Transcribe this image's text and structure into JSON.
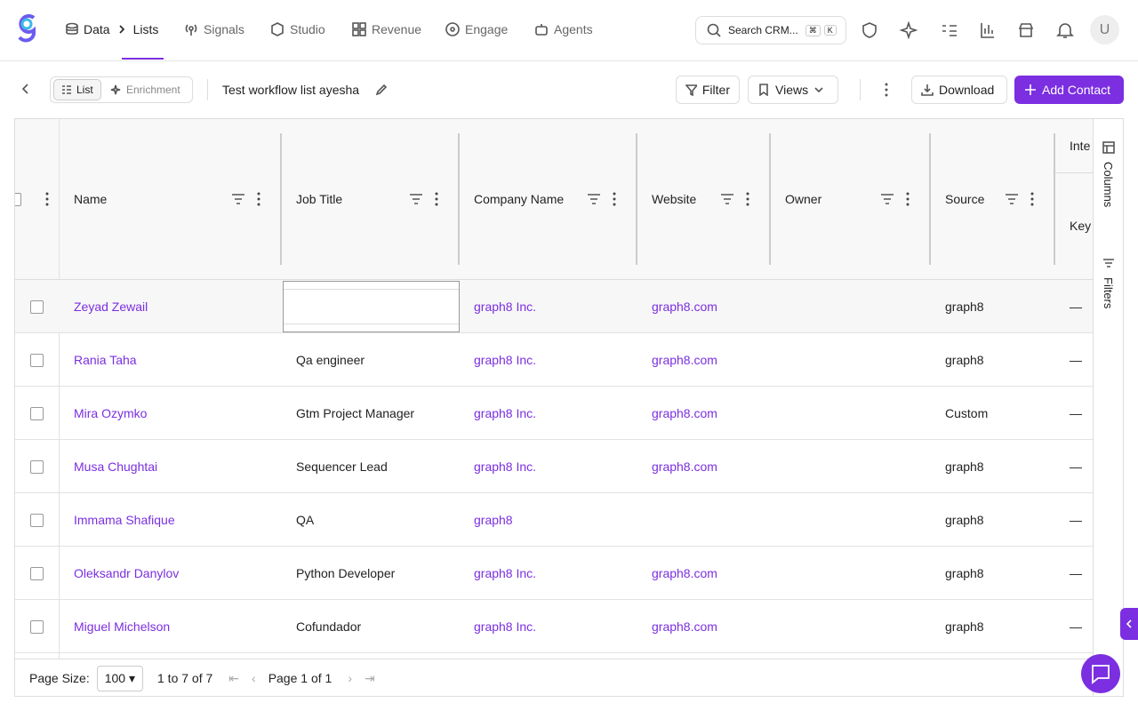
{
  "nav": {
    "breadcrumb": [
      "Data",
      "Lists"
    ],
    "items": [
      "Signals",
      "Studio",
      "Revenue",
      "Engage",
      "Agents"
    ],
    "search": "Search CRM...",
    "shortcut": [
      "⌘",
      "K"
    ],
    "avatar": "U"
  },
  "toolbar": {
    "tabs": [
      "List",
      "Enrichment"
    ],
    "list_name": "Test workflow list ayesha",
    "filter": "Filter",
    "views": "Views",
    "download": "Download",
    "add": "Add Contact"
  },
  "table": {
    "columns": [
      "Name",
      "Job Title",
      "Company Name",
      "Website",
      "Owner",
      "Source"
    ],
    "group_header": "Inte",
    "sub_header": "Key",
    "rows": [
      {
        "name": "Zeyad Zewail",
        "company": "graph8 Inc.",
        "website": "graph8.com",
        "source": "graph8",
        "key": "—"
      },
      {
        "name": "Rania Taha",
        "job_title": "Qa engineer",
        "company": "graph8 Inc.",
        "website": "graph8.com",
        "source": "graph8",
        "key": "—"
      },
      {
        "name": "Mira Ozymko",
        "job_title": "Gtm Project Manager",
        "company": "graph8 Inc.",
        "website": "graph8.com",
        "source": "Custom",
        "key": "—"
      },
      {
        "name": "Musa Chughtai",
        "job_title": "Sequencer Lead",
        "company": "graph8 Inc.",
        "website": "graph8.com",
        "source": "graph8",
        "key": "—"
      },
      {
        "name": "Immama Shafique",
        "job_title": "QA",
        "company": "graph8",
        "source": "graph8",
        "key": "—"
      },
      {
        "name": "Oleksandr Danylov",
        "job_title": "Python Developer",
        "company": "graph8 Inc.",
        "website": "graph8.com",
        "source": "graph8",
        "key": "—"
      },
      {
        "name": "Miguel Michelson",
        "job_title": "Cofundador",
        "company": "graph8 Inc.",
        "website": "graph8.com",
        "source": "graph8",
        "key": "—"
      }
    ]
  },
  "side_panel": [
    "Columns",
    "Filters"
  ],
  "footer": {
    "page_size_label": "Page Size:",
    "page_size": "100",
    "range": "1 to 7 of 7",
    "page": "Page 1 of 1"
  }
}
